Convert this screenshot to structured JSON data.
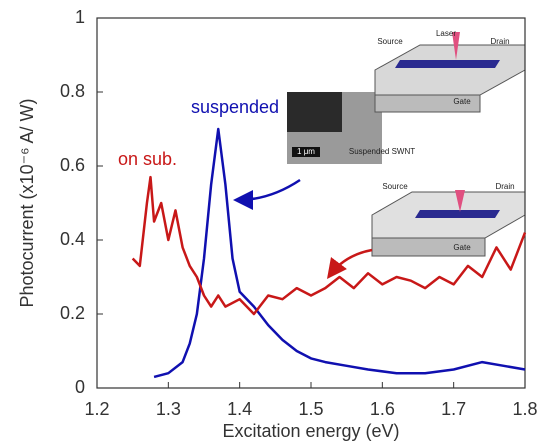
{
  "chart_data": {
    "type": "line",
    "xlabel": "Excitation energy (eV)",
    "ylabel": "Photocurrent (x10⁻⁶ A/ W)",
    "xlim": [
      1.2,
      1.8
    ],
    "xticks": [
      1.2,
      1.3,
      1.4,
      1.5,
      1.6,
      1.7,
      1.8
    ],
    "ylim": [
      0,
      1
    ],
    "yticks": [
      0,
      0.2,
      0.4,
      0.6,
      0.8,
      1
    ],
    "series": [
      {
        "name": "suspended",
        "color": "#1010b0",
        "x": [
          1.28,
          1.3,
          1.32,
          1.33,
          1.34,
          1.35,
          1.36,
          1.37,
          1.38,
          1.39,
          1.4,
          1.42,
          1.44,
          1.46,
          1.48,
          1.5,
          1.52,
          1.55,
          1.58,
          1.62,
          1.66,
          1.7,
          1.74,
          1.77,
          1.8
        ],
        "values": [
          0.03,
          0.04,
          0.07,
          0.12,
          0.2,
          0.35,
          0.55,
          0.7,
          0.55,
          0.35,
          0.26,
          0.22,
          0.17,
          0.13,
          0.1,
          0.08,
          0.07,
          0.06,
          0.05,
          0.04,
          0.04,
          0.05,
          0.07,
          0.06,
          0.05
        ]
      },
      {
        "name": "on sub.",
        "color": "#c81818",
        "x": [
          1.25,
          1.26,
          1.27,
          1.275,
          1.28,
          1.29,
          1.3,
          1.31,
          1.32,
          1.33,
          1.34,
          1.35,
          1.36,
          1.37,
          1.38,
          1.4,
          1.42,
          1.44,
          1.46,
          1.48,
          1.5,
          1.52,
          1.54,
          1.56,
          1.58,
          1.6,
          1.62,
          1.64,
          1.66,
          1.68,
          1.7,
          1.72,
          1.74,
          1.76,
          1.78,
          1.8
        ],
        "values": [
          0.35,
          0.33,
          0.5,
          0.57,
          0.45,
          0.5,
          0.4,
          0.48,
          0.38,
          0.33,
          0.3,
          0.25,
          0.22,
          0.25,
          0.22,
          0.24,
          0.2,
          0.25,
          0.24,
          0.27,
          0.25,
          0.27,
          0.3,
          0.27,
          0.31,
          0.28,
          0.3,
          0.29,
          0.27,
          0.3,
          0.28,
          0.33,
          0.3,
          0.38,
          0.32,
          0.42
        ]
      }
    ],
    "annotations": [
      "Source",
      "Laser",
      "Drain",
      "Gate",
      "Suspended SWNT",
      "1 μm",
      "Source",
      "Drain",
      "Gate"
    ]
  }
}
